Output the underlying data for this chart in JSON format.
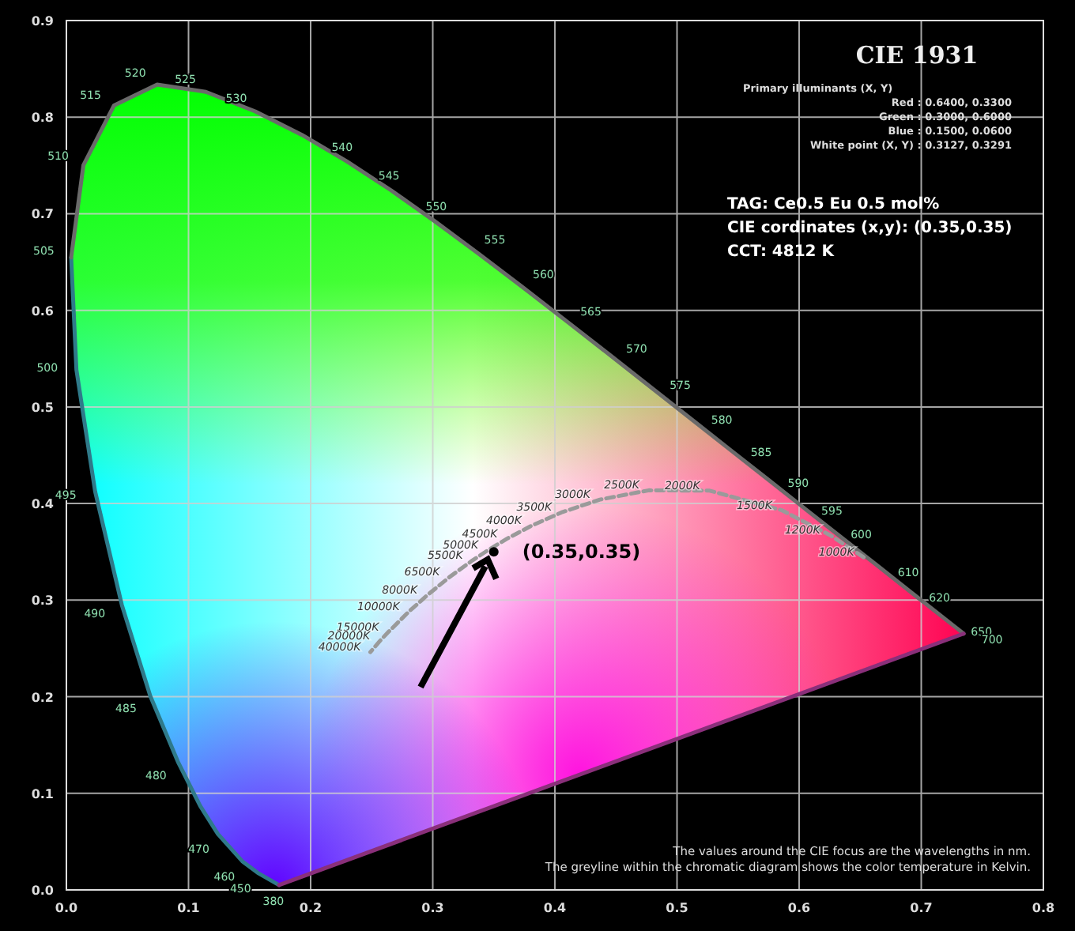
{
  "chart_data": {
    "type": "line",
    "title": "CIE 1931",
    "xlim": [
      0,
      0.8
    ],
    "ylim": [
      0,
      0.9
    ],
    "xticks": [
      {
        "value": 0,
        "label": "0.0"
      },
      0.1,
      0.2,
      0.3,
      0.4,
      0.5,
      0.6,
      0.7,
      0.8
    ],
    "yticks": [
      {
        "value": 0,
        "label": "0.0"
      },
      0.1,
      0.2,
      0.3,
      0.4,
      0.5,
      0.6,
      0.7,
      0.8,
      0.9
    ],
    "grid": true,
    "series": [
      {
        "color": "#2f7a8a",
        "marker": "none",
        "x": [
          0.1741,
          0.1566,
          0.144,
          0.1241,
          0.1096,
          0.0913,
          0.0687,
          0.0454,
          0.0235,
          0.0082,
          0.0039
        ],
        "values": [
          0.005,
          0.0177,
          0.0297,
          0.0578,
          0.0868,
          0.1327,
          0.2007,
          0.295,
          0.4127,
          0.5384,
          0.6548
        ]
      },
      {
        "color": "#6a6a6a",
        "marker": "none",
        "x": [
          0.0039,
          0.0139,
          0.0389,
          0.0743,
          0.1142,
          0.1547,
          0.1929,
          0.2296,
          0.2658,
          0.3016,
          0.3373,
          0.3731,
          0.4087,
          0.4441,
          0.4788,
          0.5125,
          0.5448,
          0.5752,
          0.6029,
          0.627,
          0.6658,
          0.6915,
          0.726,
          0.7347
        ],
        "values": [
          0.6548,
          0.7502,
          0.812,
          0.8338,
          0.8262,
          0.8059,
          0.7816,
          0.7543,
          0.7243,
          0.6923,
          0.6589,
          0.6245,
          0.5896,
          0.5547,
          0.5202,
          0.4866,
          0.4544,
          0.4242,
          0.3965,
          0.3725,
          0.334,
          0.3083,
          0.274,
          0.2653
        ]
      },
      {
        "color": "#8a2f7a",
        "marker": "none",
        "x": [
          0.1741,
          0.7347
        ],
        "values": [
          0.005,
          0.2653
        ]
      },
      {
        "color": "#9a9a9a",
        "marker": "none",
        "line_style": "dashed",
        "x": [
          0.6528,
          0.6251,
          0.5857,
          0.5267,
          0.477,
          0.4369,
          0.4053,
          0.3805,
          0.3608,
          0.3451,
          0.3325,
          0.3135,
          0.2952,
          0.2807,
          0.2637,
          0.2565,
          0.2489
        ],
        "values": [
          0.3444,
          0.3674,
          0.3931,
          0.4133,
          0.4137,
          0.4041,
          0.3907,
          0.3768,
          0.3636,
          0.3516,
          0.3411,
          0.3237,
          0.3048,
          0.2884,
          0.2671,
          0.2574,
          0.2462
        ]
      },
      {
        "type": "scatter",
        "color": "#000000",
        "marker": "circle",
        "x": [
          0.35
        ],
        "values": [
          0.35
        ]
      }
    ],
    "annotations": [
      "Primary illuminants (X, Y)",
      "Red  :  0.6400, 0.3300",
      "Green :  0.3000, 0.6000",
      "Blue  :  0.1500, 0.0600",
      "White point (X, Y)  :  0.3127, 0.3291",
      "TAG: Ce0.5 Eu 0.5 mol%",
      "CIE cordinates (x,y): (0.35,0.35)",
      "CCT: 4812 K",
      "The values around the CIE focus are the wavelengths in nm.",
      "The greyline within the chromatic diagram shows the color temperature in Kelvin.",
      {
        "text": "(0.35,0.35)",
        "x": 0.35,
        "y": 0.35
      },
      {
        "text": "380",
        "x": 0.1741,
        "y": 0.005
      },
      {
        "text": "450",
        "x": 0.1566,
        "y": 0.0177
      },
      {
        "text": "460",
        "x": 0.144,
        "y": 0.0297
      },
      {
        "text": "470",
        "x": 0.1241,
        "y": 0.0578
      },
      {
        "text": "480",
        "x": 0.0913,
        "y": 0.1327
      },
      {
        "text": "485",
        "x": 0.0687,
        "y": 0.2007
      },
      {
        "text": "490",
        "x": 0.0454,
        "y": 0.295
      },
      {
        "text": "495",
        "x": 0.0235,
        "y": 0.4127
      },
      {
        "text": "500",
        "x": 0.0082,
        "y": 0.5384
      },
      {
        "text": "505",
        "x": 0.0039,
        "y": 0.6548
      },
      {
        "text": "510",
        "x": 0.0139,
        "y": 0.7502
      },
      {
        "text": "515",
        "x": 0.0389,
        "y": 0.812
      },
      {
        "text": "520",
        "x": 0.0743,
        "y": 0.8338
      },
      {
        "text": "525",
        "x": 0.1142,
        "y": 0.8262
      },
      {
        "text": "530",
        "x": 0.1547,
        "y": 0.8059
      },
      {
        "text": "540",
        "x": 0.2296,
        "y": 0.7543
      },
      {
        "text": "545",
        "x": 0.2658,
        "y": 0.7243
      },
      {
        "text": "550",
        "x": 0.3016,
        "y": 0.6923
      },
      {
        "text": "555",
        "x": 0.3373,
        "y": 0.6589
      },
      {
        "text": "560",
        "x": 0.3731,
        "y": 0.6245
      },
      {
        "text": "565",
        "x": 0.4087,
        "y": 0.5896
      },
      {
        "text": "570",
        "x": 0.4441,
        "y": 0.5547
      },
      {
        "text": "575",
        "x": 0.4788,
        "y": 0.5202
      },
      {
        "text": "580",
        "x": 0.5125,
        "y": 0.4866
      },
      {
        "text": "585",
        "x": 0.5448,
        "y": 0.4544
      },
      {
        "text": "590",
        "x": 0.5752,
        "y": 0.4242
      },
      {
        "text": "595",
        "x": 0.6029,
        "y": 0.3965
      },
      {
        "text": "600",
        "x": 0.627,
        "y": 0.3725
      },
      {
        "text": "610",
        "x": 0.6658,
        "y": 0.334
      },
      {
        "text": "620",
        "x": 0.6915,
        "y": 0.3083
      },
      {
        "text": "650",
        "x": 0.726,
        "y": 0.274
      },
      {
        "text": "700",
        "x": 0.7347,
        "y": 0.2653
      },
      {
        "text": "1000K",
        "x": 0.6528,
        "y": 0.3444
      },
      {
        "text": "1200K",
        "x": 0.6251,
        "y": 0.3674
      },
      {
        "text": "1500K",
        "x": 0.5857,
        "y": 0.3931
      },
      {
        "text": "2000K",
        "x": 0.5267,
        "y": 0.4133
      },
      {
        "text": "2500K",
        "x": 0.477,
        "y": 0.4137
      },
      {
        "text": "3000K",
        "x": 0.4369,
        "y": 0.4041
      },
      {
        "text": "3500K",
        "x": 0.4053,
        "y": 0.3907
      },
      {
        "text": "4000K",
        "x": 0.3805,
        "y": 0.3768
      },
      {
        "text": "4500K",
        "x": 0.3608,
        "y": 0.3636
      },
      {
        "text": "5000K",
        "x": 0.3451,
        "y": 0.3516
      },
      {
        "text": "5500K",
        "x": 0.3325,
        "y": 0.3411
      },
      {
        "text": "6500K",
        "x": 0.3135,
        "y": 0.3237
      },
      {
        "text": "8000K",
        "x": 0.2952,
        "y": 0.3048
      },
      {
        "text": "10000K",
        "x": 0.2807,
        "y": 0.2884
      },
      {
        "text": "15000K",
        "x": 0.2637,
        "y": 0.2671
      },
      {
        "text": "20000K",
        "x": 0.2565,
        "y": 0.2574
      },
      {
        "text": "40000K",
        "x": 0.2489,
        "y": 0.2462
      }
    ]
  }
}
